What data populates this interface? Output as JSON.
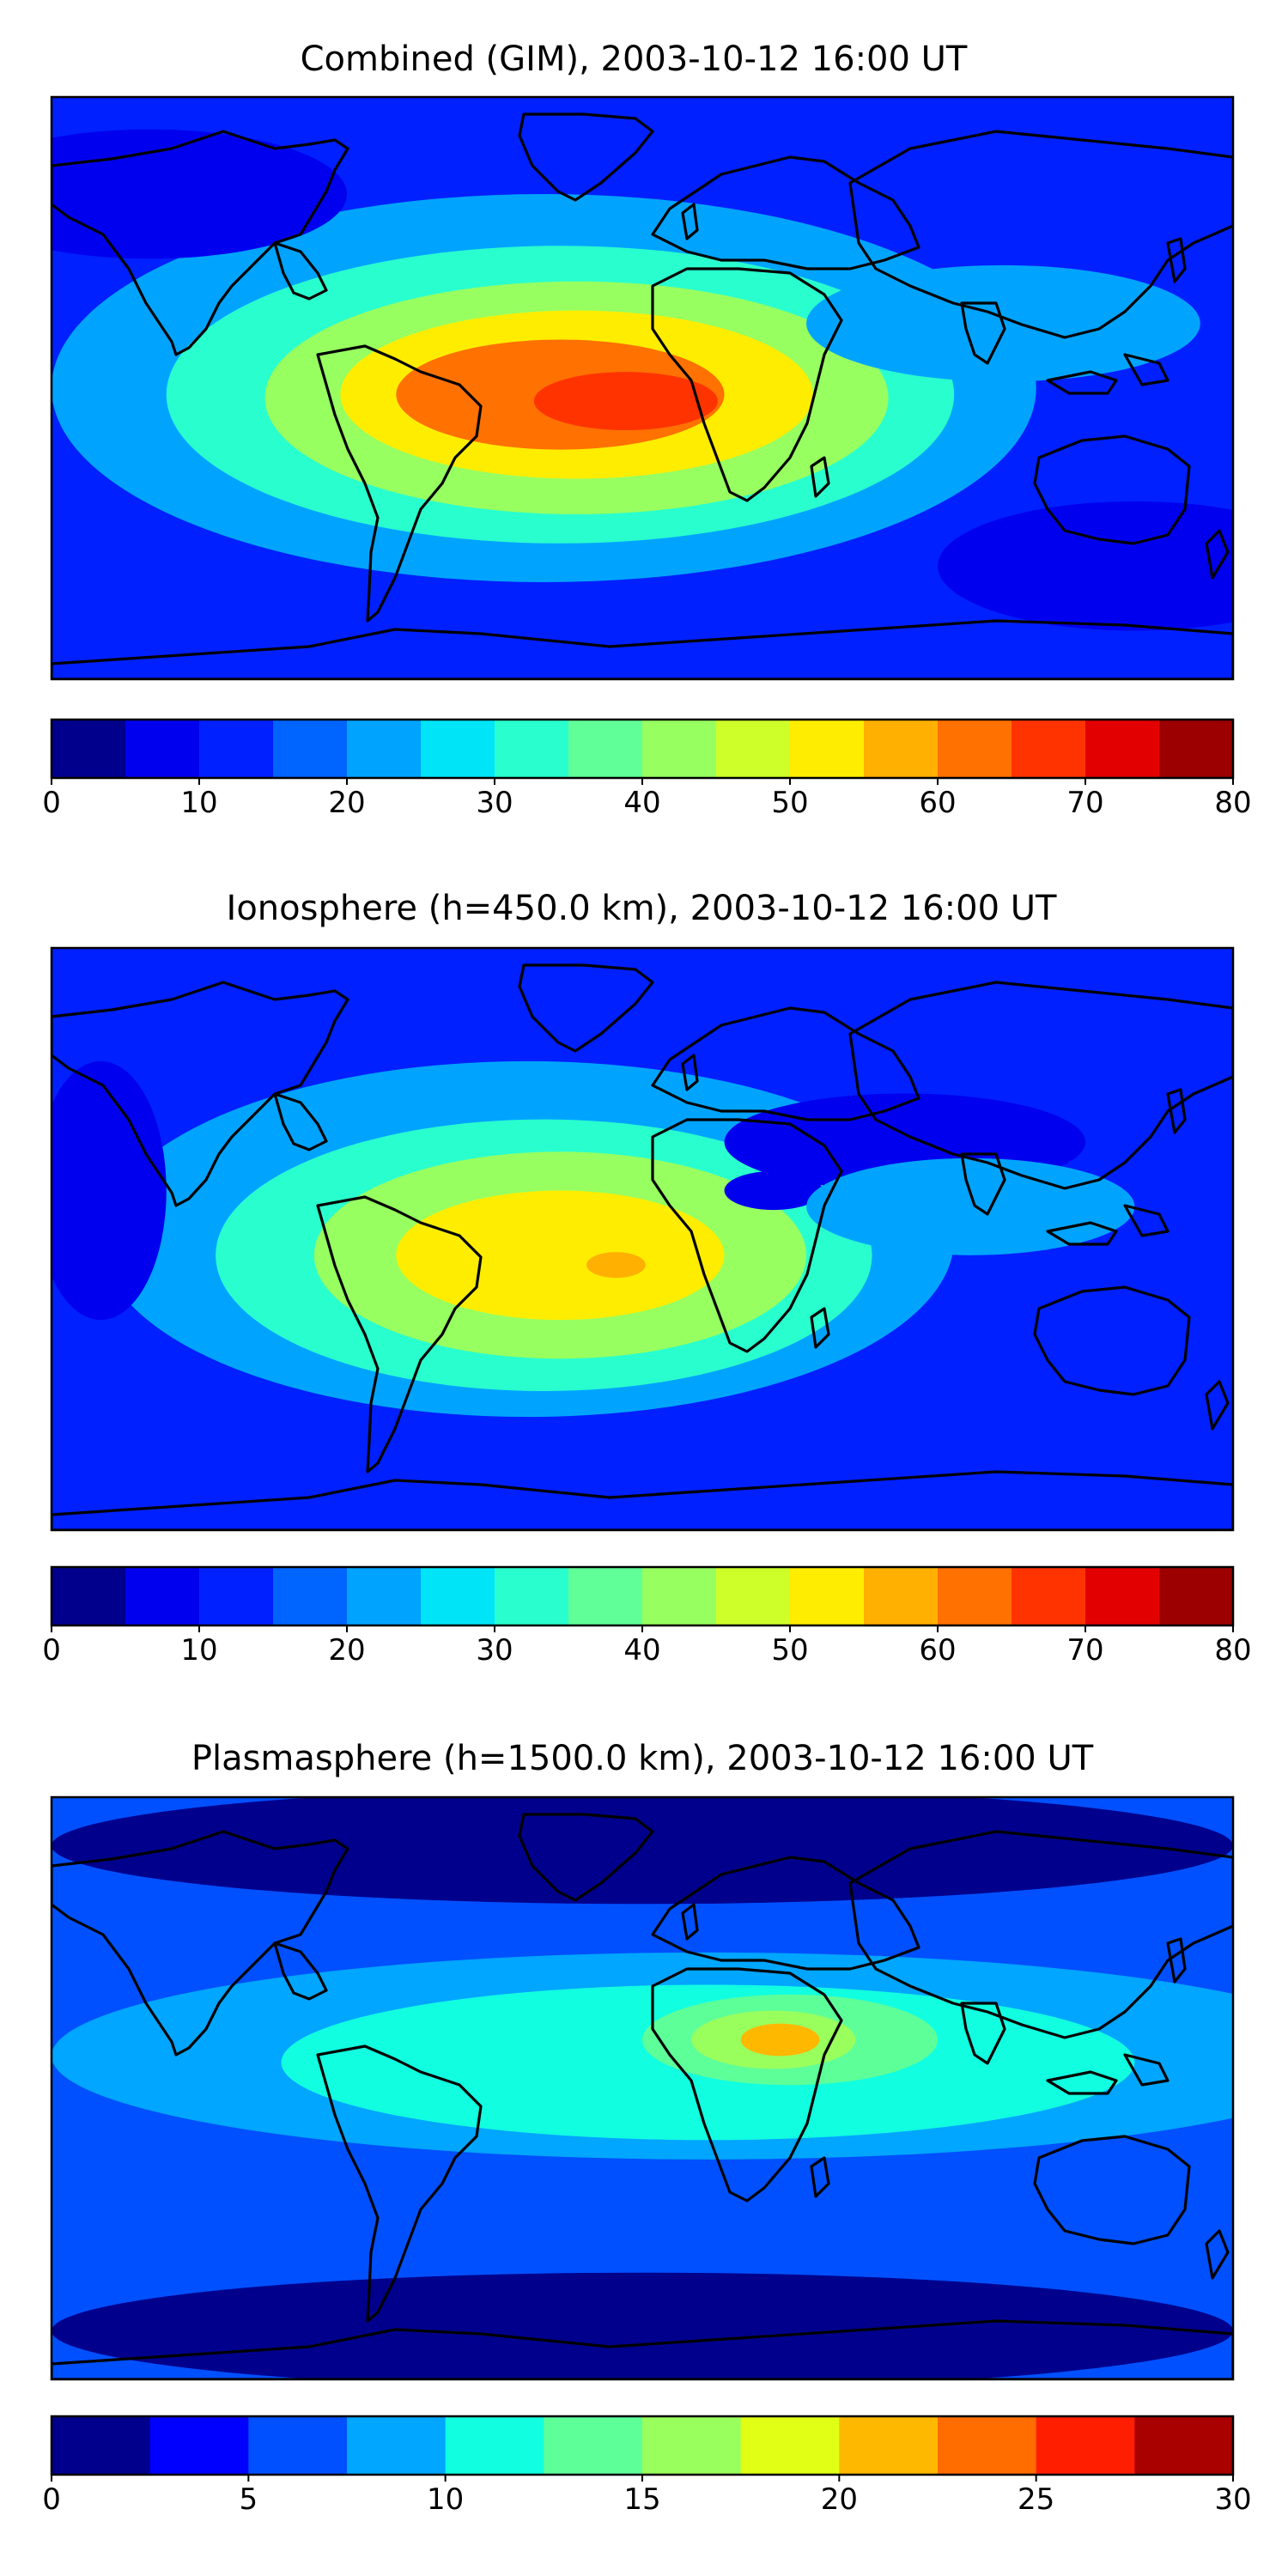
{
  "chart_data": [
    {
      "type": "heatmap",
      "title": "Combined (GIM), 2003-10-12 16:00 UT",
      "projection": "PlateCarree",
      "lon_range": [
        -180,
        180
      ],
      "lat_range": [
        -90,
        90
      ],
      "colorbar": {
        "levels": [
          0,
          5,
          10,
          15,
          20,
          25,
          30,
          35,
          40,
          45,
          50,
          55,
          60,
          65,
          70,
          75,
          80
        ],
        "colors": [
          "#00008d",
          "#0000ef",
          "#0020ff",
          "#0064ff",
          "#00a4ff",
          "#00e4f8",
          "#29ffce",
          "#60ff97",
          "#97ff60",
          "#ceff29",
          "#ffed00",
          "#ffb000",
          "#ff7100",
          "#ff3300",
          "#e30000",
          "#9c0000"
        ],
        "tick_labels": [
          "0",
          "10",
          "20",
          "30",
          "40",
          "50",
          "60",
          "70",
          "80"
        ],
        "tick_values": [
          0,
          10,
          20,
          30,
          40,
          50,
          60,
          70,
          80
        ]
      },
      "background_value": 12,
      "features": [
        {
          "lon": -30,
          "lat": 0,
          "rx": 150,
          "ry": 60,
          "value": 22
        },
        {
          "lon": -25,
          "lat": -2,
          "rx": 120,
          "ry": 46,
          "value": 32
        },
        {
          "lon": -20,
          "lat": -3,
          "rx": 95,
          "ry": 36,
          "value": 42
        },
        {
          "lon": -20,
          "lat": -2,
          "rx": 72,
          "ry": 26,
          "value": 52
        },
        {
          "lon": -25,
          "lat": -2,
          "rx": 50,
          "ry": 17,
          "value": 62
        },
        {
          "lon": -5,
          "lat": -4,
          "rx": 28,
          "ry": 9,
          "value": 68
        },
        {
          "lon": 110,
          "lat": 20,
          "rx": 60,
          "ry": 18,
          "value": 22
        },
        {
          "lon": -150,
          "lat": 60,
          "rx": 60,
          "ry": 20,
          "value": 8
        },
        {
          "lon": 150,
          "lat": -55,
          "rx": 60,
          "ry": 20,
          "value": 8
        }
      ]
    },
    {
      "type": "heatmap",
      "title": "Ionosphere  (h=450.0 km), 2003-10-12 16:00 UT",
      "projection": "PlateCarree",
      "lon_range": [
        -180,
        180
      ],
      "lat_range": [
        -90,
        90
      ],
      "colorbar": {
        "levels": [
          0,
          5,
          10,
          15,
          20,
          25,
          30,
          35,
          40,
          45,
          50,
          55,
          60,
          65,
          70,
          75,
          80
        ],
        "colors": [
          "#00008d",
          "#0000ef",
          "#0020ff",
          "#0064ff",
          "#00a4ff",
          "#00e4f8",
          "#29ffce",
          "#60ff97",
          "#97ff60",
          "#ceff29",
          "#ffed00",
          "#ffb000",
          "#ff7100",
          "#ff3300",
          "#e30000",
          "#9c0000"
        ],
        "tick_labels": [
          "0",
          "10",
          "20",
          "30",
          "40",
          "50",
          "60",
          "70",
          "80"
        ],
        "tick_values": [
          0,
          10,
          20,
          30,
          40,
          50,
          60,
          70,
          80
        ]
      },
      "background_value": 12,
      "features": [
        {
          "lon": -35,
          "lat": 0,
          "rx": 130,
          "ry": 55,
          "value": 22
        },
        {
          "lon": -30,
          "lat": -5,
          "rx": 100,
          "ry": 42,
          "value": 32
        },
        {
          "lon": -25,
          "lat": -5,
          "rx": 75,
          "ry": 32,
          "value": 42
        },
        {
          "lon": -25,
          "lat": -5,
          "rx": 50,
          "ry": 20,
          "value": 52
        },
        {
          "lon": -8,
          "lat": -8,
          "rx": 9,
          "ry": 4,
          "value": 57
        },
        {
          "lon": 40,
          "lat": 15,
          "rx": 15,
          "ry": 6,
          "value": 8
        },
        {
          "lon": 80,
          "lat": 30,
          "rx": 55,
          "ry": 15,
          "value": 8
        },
        {
          "lon": 100,
          "lat": 10,
          "rx": 50,
          "ry": 15,
          "value": 22
        },
        {
          "lon": -165,
          "lat": 15,
          "rx": 20,
          "ry": 40,
          "value": 8
        }
      ]
    },
    {
      "type": "heatmap",
      "title": "Plasmasphere (h=1500.0 km), 2003-10-12 16:00 UT",
      "projection": "PlateCarree",
      "lon_range": [
        -180,
        180
      ],
      "lat_range": [
        -90,
        90
      ],
      "colorbar": {
        "levels": [
          0,
          2.5,
          5,
          7.5,
          10,
          12.5,
          15,
          17.5,
          20,
          22.5,
          25,
          27.5,
          30
        ],
        "colors": [
          "#00008d",
          "#0000ff",
          "#0050ff",
          "#00a6ff",
          "#11ffe0",
          "#5dff99",
          "#99ff5d",
          "#e0ff15",
          "#ffb800",
          "#ff6d00",
          "#ff1f00",
          "#a90000"
        ],
        "tick_labels": [
          "0",
          "5",
          "10",
          "15",
          "20",
          "25",
          "30"
        ],
        "tick_values": [
          0,
          5,
          10,
          15,
          20,
          25,
          30
        ]
      },
      "background_value": 6,
      "features": [
        {
          "lon": 20,
          "lat": 10,
          "rx": 200,
          "ry": 32,
          "value": 8.5
        },
        {
          "lon": 20,
          "lat": 8,
          "rx": 130,
          "ry": 24,
          "value": 11
        },
        {
          "lon": 45,
          "lat": 15,
          "rx": 45,
          "ry": 14,
          "value": 13.5
        },
        {
          "lon": 40,
          "lat": 15,
          "rx": 25,
          "ry": 9,
          "value": 16
        },
        {
          "lon": 42,
          "lat": 15,
          "rx": 12,
          "ry": 5,
          "value": 21
        },
        {
          "lon": 0,
          "lat": 75,
          "rx": 180,
          "ry": 18,
          "value": 1
        },
        {
          "lon": 0,
          "lat": -75,
          "rx": 180,
          "ry": 18,
          "value": 1
        }
      ]
    }
  ]
}
